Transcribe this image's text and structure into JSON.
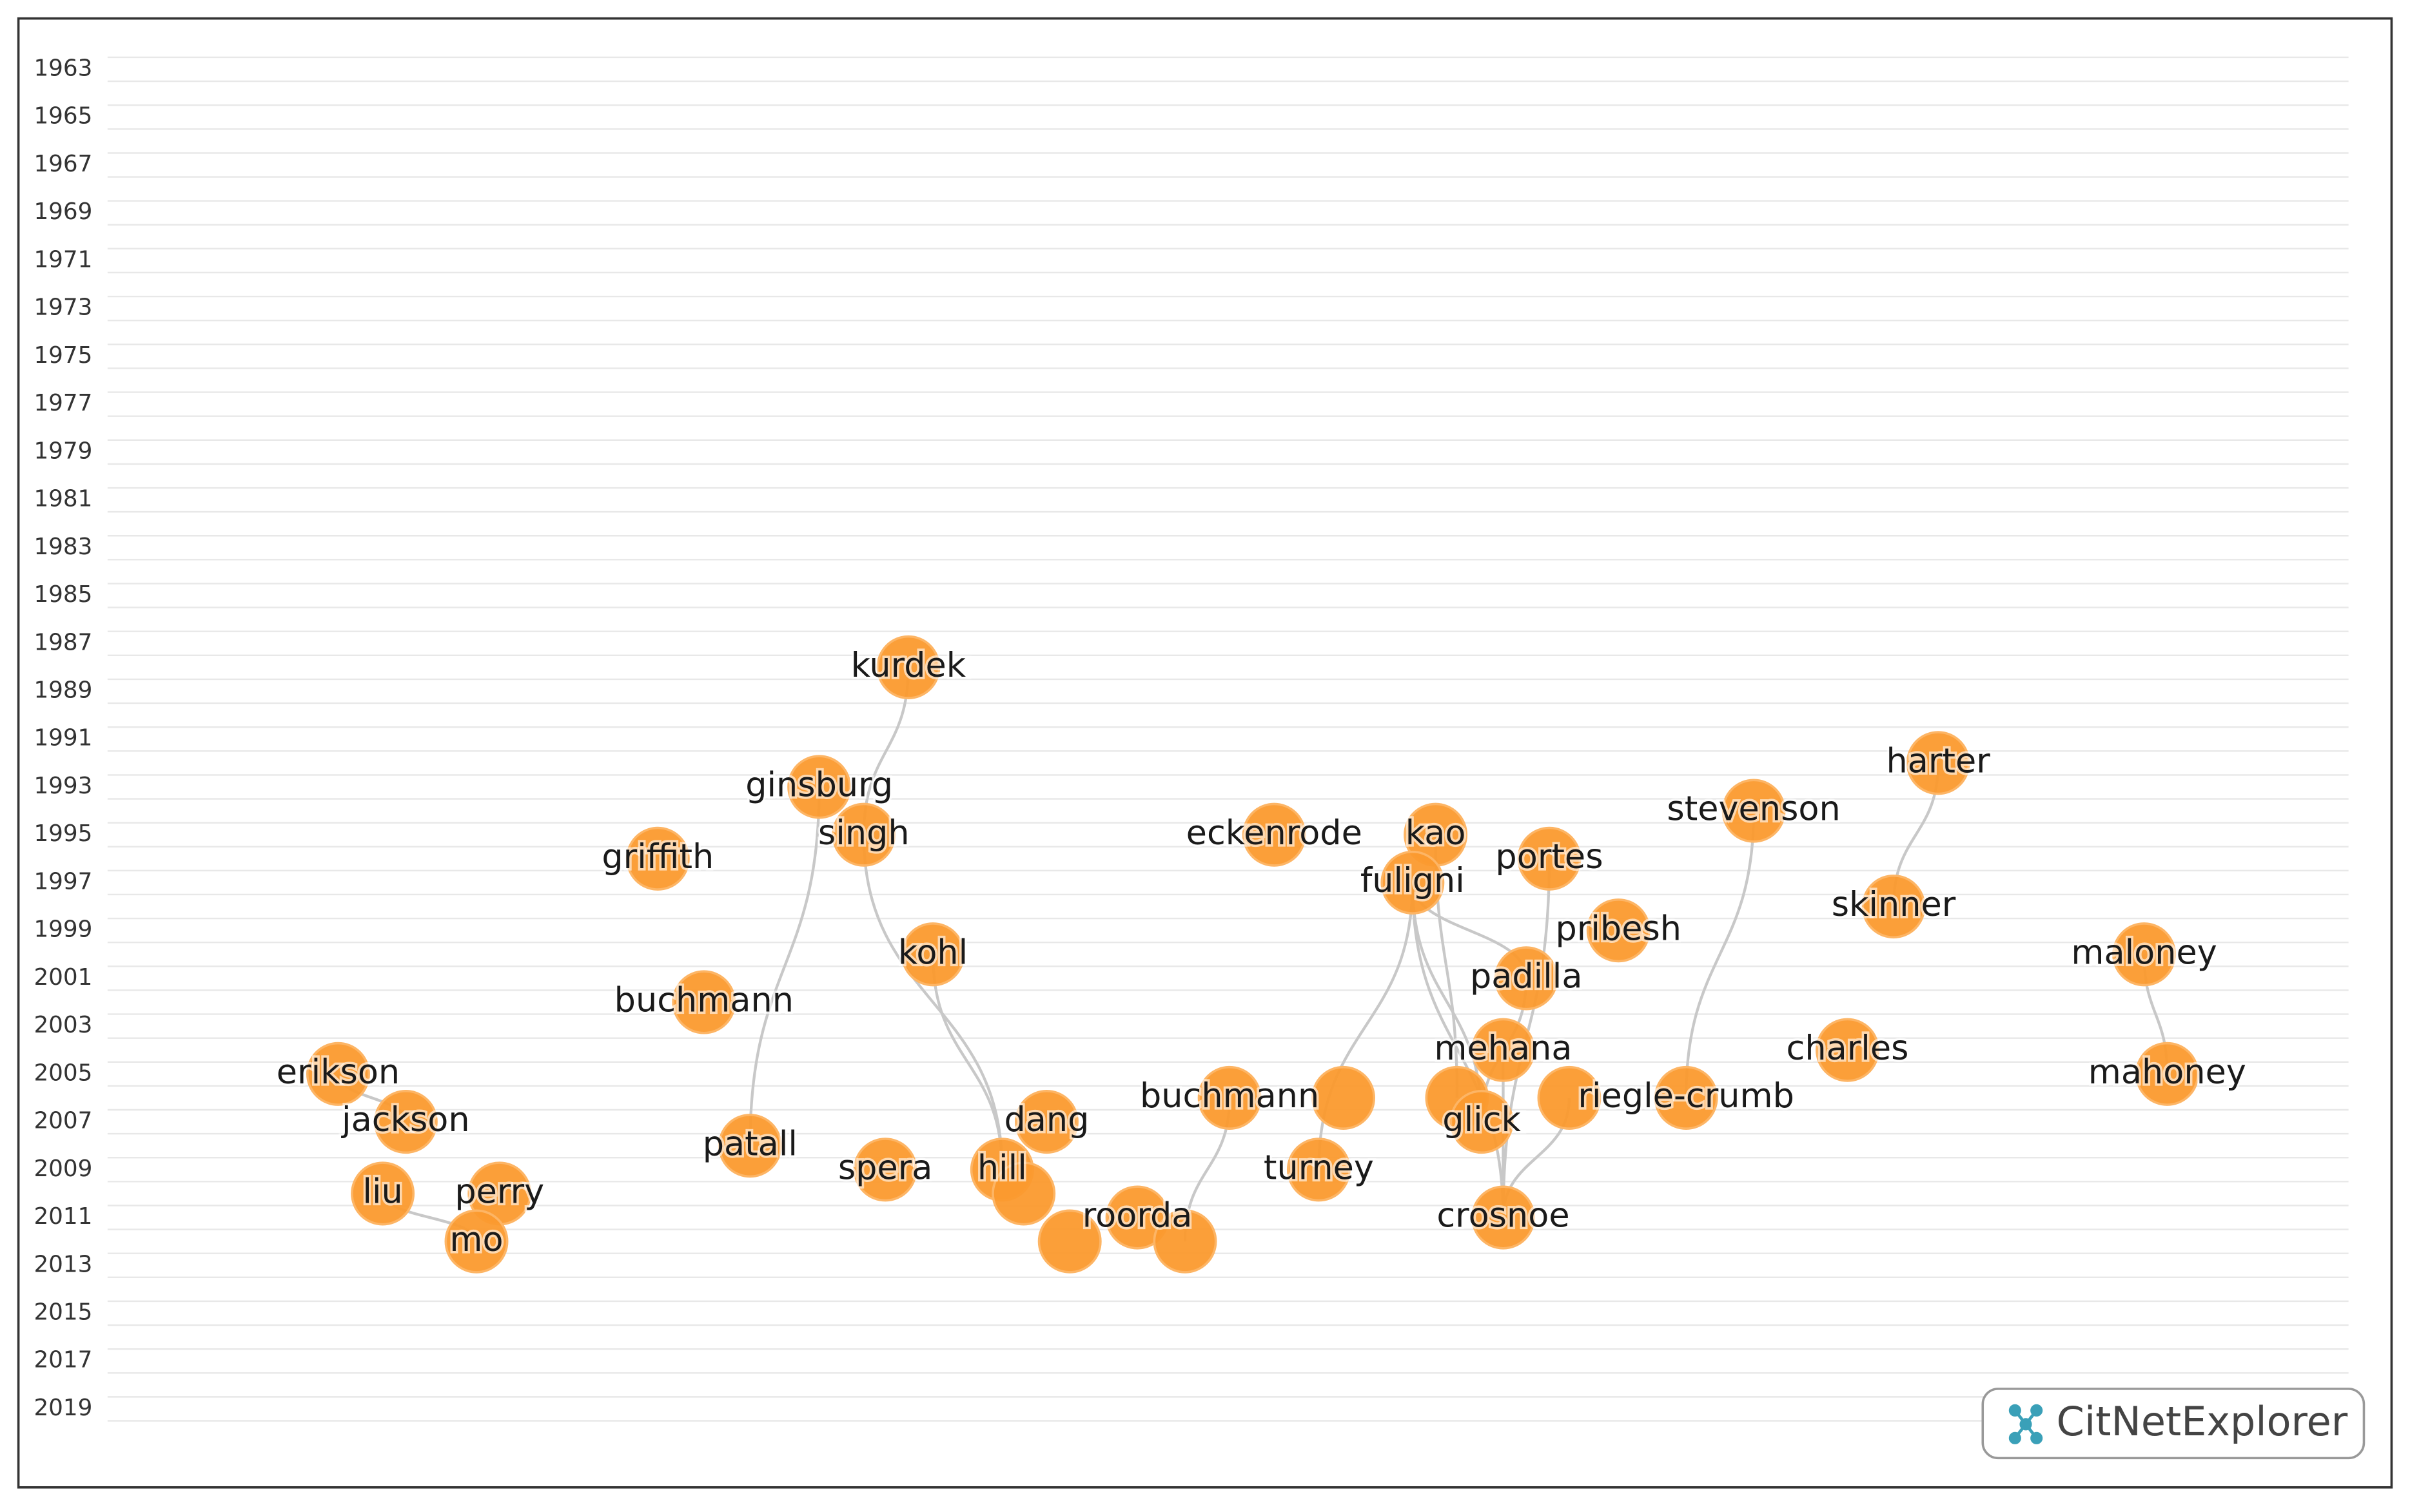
{
  "year_axis": [
    1963,
    1965,
    1967,
    1969,
    1971,
    1973,
    1975,
    1977,
    1979,
    1981,
    1983,
    1985,
    1987,
    1989,
    1991,
    1993,
    1995,
    1997,
    1999,
    2001,
    2003,
    2005,
    2007,
    2009,
    2011,
    2013,
    2015,
    2017,
    2019
  ],
  "nodes": [
    {
      "label": "kurdek",
      "year": 1988
    },
    {
      "label": "ginsburg",
      "year": 1993
    },
    {
      "label": "singh",
      "year": 1995
    },
    {
      "label": "griffith",
      "year": 1996
    },
    {
      "label": "kohl",
      "year": 2000
    },
    {
      "label": "buchmann",
      "year": 2002
    },
    {
      "label": "erikson",
      "year": 2005
    },
    {
      "label": "jackson",
      "year": 2007
    },
    {
      "label": "liu",
      "year": 2010
    },
    {
      "label": "perry",
      "year": 2010
    },
    {
      "label": "mo",
      "year": 2012
    },
    {
      "label": "patall",
      "year": 2008
    },
    {
      "label": "spera",
      "year": 2009
    },
    {
      "label": "hill",
      "year": 2009
    },
    {
      "year": 2010
    },
    {
      "label": "dang",
      "year": 2007
    },
    {
      "year": 2012
    },
    {
      "label": "roorda",
      "year": 2011
    },
    {
      "year": 2012
    },
    {
      "label": "buchmann",
      "year": 2006
    },
    {
      "year": 2006
    },
    {
      "label": "turney",
      "year": 2009
    },
    {
      "label": "eckenrode",
      "year": 1995
    },
    {
      "label": "kao",
      "year": 1995
    },
    {
      "label": "fuligni",
      "year": 1997
    },
    {
      "label": "portes",
      "year": 1996
    },
    {
      "label": "pribesh",
      "year": 1999
    },
    {
      "label": "padilla",
      "year": 2001
    },
    {
      "label": "mehana",
      "year": 2004
    },
    {
      "year": 2006
    },
    {
      "label": "glick",
      "year": 2007
    },
    {
      "year": 2006
    },
    {
      "label": "riegle-crumb",
      "year": 2006
    },
    {
      "label": "crosnoe",
      "year": 2011
    },
    {
      "label": "stevenson",
      "year": 1994
    },
    {
      "label": "harter",
      "year": 1992
    },
    {
      "label": "skinner",
      "year": 1998
    },
    {
      "label": "charles",
      "year": 2004
    },
    {
      "label": "maloney",
      "year": 2000
    },
    {
      "label": "mahoney",
      "year": 2005
    }
  ],
  "logo": {
    "text": "CitNetExplorer"
  }
}
